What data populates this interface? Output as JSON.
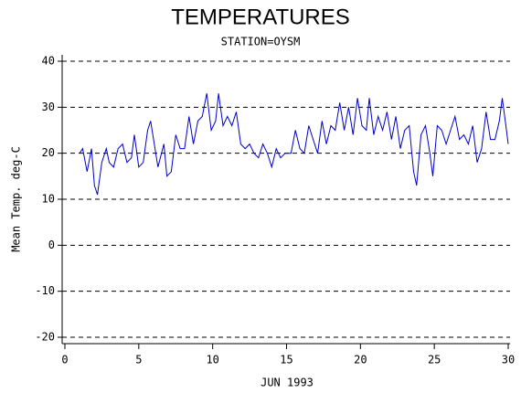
{
  "chart_data": {
    "type": "line",
    "title": "TEMPERATURES",
    "subtitle": "STATION=OYSM",
    "ylabel": "Mean Temp. deg-C",
    "xlabel": "JUN 1993",
    "xlim": [
      0,
      30
    ],
    "xticks": [
      0,
      5,
      10,
      15,
      20,
      25,
      30
    ],
    "ylim": [
      -20,
      40
    ],
    "yticks": [
      -20,
      -10,
      0,
      10,
      20,
      30,
      40
    ],
    "grid": true,
    "series": [
      {
        "color": "#0000cc",
        "x": [
          1,
          1.2,
          1.5,
          1.8,
          2.0,
          2.2,
          2.5,
          2.8,
          3.0,
          3.3,
          3.6,
          3.9,
          4.2,
          4.5,
          4.7,
          5.0,
          5.3,
          5.6,
          5.8,
          6.1,
          6.3,
          6.7,
          6.9,
          7.2,
          7.5,
          7.8,
          8.1,
          8.4,
          8.7,
          9.0,
          9.3,
          9.6,
          9.9,
          10.2,
          10.4,
          10.7,
          11.0,
          11.3,
          11.6,
          11.9,
          12.2,
          12.5,
          12.8,
          13.1,
          13.4,
          13.7,
          14.0,
          14.3,
          14.6,
          14.9,
          15.3,
          15.6,
          15.9,
          16.2,
          16.5,
          16.8,
          17.1,
          17.4,
          17.7,
          18.0,
          18.3,
          18.6,
          18.9,
          19.2,
          19.5,
          19.8,
          20.1,
          20.4,
          20.6,
          20.9,
          21.2,
          21.5,
          21.8,
          22.1,
          22.4,
          22.7,
          23.0,
          23.3,
          23.6,
          23.8,
          24.1,
          24.4,
          24.7,
          24.9,
          25.2,
          25.5,
          25.8,
          26.1,
          26.4,
          26.7,
          27.0,
          27.3,
          27.6,
          27.9,
          28.2,
          28.5,
          28.8,
          29.1,
          29.4,
          29.6,
          29.8,
          30.0
        ],
        "values": [
          20,
          21,
          16,
          21,
          13,
          11,
          18,
          21,
          18,
          17,
          21,
          22,
          18,
          19,
          24,
          17,
          18,
          25,
          27,
          21,
          17,
          22,
          15,
          16,
          24,
          21,
          21,
          28,
          22,
          27,
          28,
          33,
          25,
          27,
          33,
          26,
          28,
          26,
          29,
          22,
          21,
          22,
          20,
          19,
          22,
          20,
          17,
          21,
          19,
          20,
          20,
          25,
          21,
          20,
          26,
          23,
          20,
          27,
          22,
          26,
          25,
          31,
          25,
          30,
          24,
          32,
          26,
          25,
          32,
          24,
          28,
          25,
          29,
          23,
          28,
          21,
          25,
          26,
          16,
          13,
          24,
          26,
          20,
          15,
          26,
          25,
          22,
          25,
          28,
          23,
          24,
          22,
          26,
          18,
          21,
          29,
          23,
          23,
          27,
          32,
          27,
          22
        ]
      }
    ]
  }
}
